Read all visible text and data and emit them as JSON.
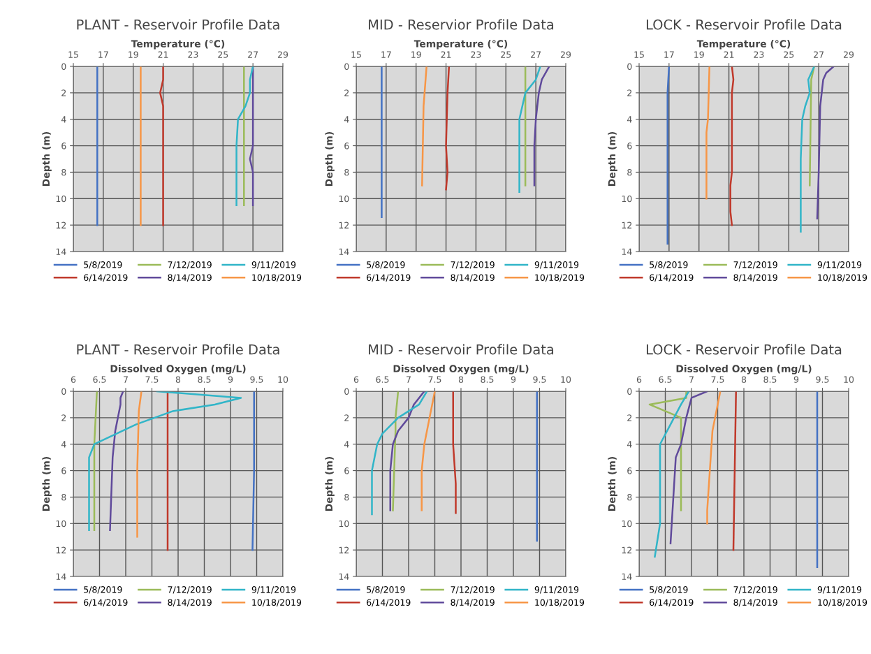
{
  "chart_data": [
    {
      "type": "line",
      "title": "PLANT - Reservoir Profile Data",
      "xlabel": "Temperature (°C)",
      "ylabel": "Depth (m)",
      "xlim": [
        15,
        29
      ],
      "xticks": [
        15,
        17,
        19,
        21,
        23,
        25,
        27,
        29
      ],
      "ylim": [
        14,
        0
      ],
      "yticks": [
        0,
        2,
        4,
        6,
        8,
        10,
        12,
        14
      ],
      "grid": true,
      "legend": "bottom",
      "series": [
        {
          "name": "5/8/2019",
          "color": "#4472c4",
          "x": [
            16.6,
            16.6
          ],
          "values": [
            0,
            12
          ]
        },
        {
          "name": "6/14/2019",
          "color": "#c0392b",
          "x": [
            21.0,
            21.0,
            20.8,
            21.0,
            21.0
          ],
          "values": [
            0,
            1,
            2,
            3,
            12
          ]
        },
        {
          "name": "7/12/2019",
          "color": "#9bbb59",
          "x": [
            26.4,
            26.4
          ],
          "values": [
            0,
            10.5
          ]
        },
        {
          "name": "8/14/2019",
          "color": "#604a9b",
          "x": [
            27.0,
            27.0,
            26.8,
            27.0,
            27.0
          ],
          "values": [
            0,
            6,
            7,
            8,
            10.5
          ]
        },
        {
          "name": "9/11/2019",
          "color": "#31b5c8",
          "x": [
            27.0,
            26.8,
            26.8,
            26.5,
            26.0,
            25.9,
            25.9
          ],
          "values": [
            0,
            1,
            2,
            3,
            4,
            6,
            10.5
          ]
        },
        {
          "name": "10/18/2019",
          "color": "#f79646",
          "x": [
            19.5,
            19.5
          ],
          "values": [
            0,
            12
          ]
        }
      ]
    },
    {
      "type": "line",
      "title": "MID - Reservior Profile Data",
      "xlabel": "Temperature (°C)",
      "ylabel": "Depth (m)",
      "xlim": [
        15,
        29
      ],
      "xticks": [
        15,
        17,
        19,
        21,
        23,
        25,
        27,
        29
      ],
      "ylim": [
        14,
        0
      ],
      "yticks": [
        0,
        2,
        4,
        6,
        8,
        10,
        12,
        14
      ],
      "grid": true,
      "legend": "bottom",
      "series": [
        {
          "name": "5/8/2019",
          "color": "#4472c4",
          "x": [
            16.7,
            16.7
          ],
          "values": [
            0,
            11.4
          ]
        },
        {
          "name": "6/14/2019",
          "color": "#c0392b",
          "x": [
            21.2,
            21.1,
            21.0,
            21.1,
            21.0
          ],
          "values": [
            0,
            2,
            6,
            8,
            9.3
          ]
        },
        {
          "name": "7/12/2019",
          "color": "#9bbb59",
          "x": [
            26.3,
            26.3
          ],
          "values": [
            0,
            9.0
          ]
        },
        {
          "name": "8/14/2019",
          "color": "#604a9b",
          "x": [
            27.9,
            27.4,
            27.2,
            27.0,
            26.9,
            26.9
          ],
          "values": [
            0,
            1,
            2,
            4,
            6,
            9
          ]
        },
        {
          "name": "9/11/2019",
          "color": "#31b5c8",
          "x": [
            27.3,
            27.0,
            26.3,
            26.1,
            25.9,
            25.9
          ],
          "values": [
            0,
            1,
            2,
            3,
            4,
            9.5
          ]
        },
        {
          "name": "10/18/2019",
          "color": "#f79646",
          "x": [
            19.7,
            19.5,
            19.4
          ],
          "values": [
            0,
            3,
            9.0
          ]
        }
      ]
    },
    {
      "type": "line",
      "title": "LOCK - Reservoir Profile Data",
      "xlabel": "Temperature (°C)",
      "ylabel": "Depth (m)",
      "xlim": [
        15,
        29
      ],
      "xticks": [
        15,
        17,
        19,
        21,
        23,
        25,
        27,
        29
      ],
      "ylim": [
        14,
        0
      ],
      "yticks": [
        0,
        2,
        4,
        6,
        8,
        10,
        12,
        14
      ],
      "grid": true,
      "legend": "bottom",
      "series": [
        {
          "name": "5/8/2019",
          "color": "#4472c4",
          "x": [
            17.0,
            16.9,
            16.9
          ],
          "values": [
            0,
            2,
            13.4
          ]
        },
        {
          "name": "6/14/2019",
          "color": "#c0392b",
          "x": [
            21.2,
            21.3,
            21.2,
            21.2,
            21.1,
            21.1,
            21.2
          ],
          "values": [
            0,
            1,
            2,
            8,
            9,
            11,
            12
          ]
        },
        {
          "name": "7/12/2019",
          "color": "#9bbb59",
          "x": [
            26.7,
            26.5,
            26.4
          ],
          "values": [
            0,
            1,
            9
          ]
        },
        {
          "name": "8/14/2019",
          "color": "#604a9b",
          "x": [
            28.0,
            27.5,
            27.3,
            27.1,
            27.0,
            26.9
          ],
          "values": [
            0,
            0.5,
            1,
            3,
            8,
            11.5
          ]
        },
        {
          "name": "9/11/2019",
          "color": "#31b5c8",
          "x": [
            26.7,
            26.3,
            26.4,
            26.1,
            25.9,
            25.8,
            25.8
          ],
          "values": [
            0,
            1,
            2,
            3,
            4,
            7,
            12.5
          ]
        },
        {
          "name": "10/18/2019",
          "color": "#f79646",
          "x": [
            19.7,
            19.6,
            19.5,
            19.5
          ],
          "values": [
            0,
            4,
            5,
            10
          ]
        }
      ]
    },
    {
      "type": "line",
      "title": "PLANT - Reservoir Profile Data",
      "xlabel": "Dissolved Oxygen (mg/L)",
      "ylabel": "Depth (m)",
      "xlim": [
        6,
        10
      ],
      "xticks": [
        6,
        6.5,
        7,
        7.5,
        8,
        8.5,
        9,
        9.5,
        10
      ],
      "ylim": [
        14,
        0
      ],
      "yticks": [
        0,
        2,
        4,
        6,
        8,
        10,
        12,
        14
      ],
      "grid": true,
      "legend": "bottom",
      "series": [
        {
          "name": "5/8/2019",
          "color": "#4472c4",
          "x": [
            9.45,
            9.45,
            9.42
          ],
          "values": [
            0,
            6,
            12
          ]
        },
        {
          "name": "6/14/2019",
          "color": "#c0392b",
          "x": [
            7.8,
            7.8
          ],
          "values": [
            0,
            12
          ]
        },
        {
          "name": "7/12/2019",
          "color": "#9bbb59",
          "x": [
            6.45,
            6.4,
            6.4
          ],
          "values": [
            0,
            4,
            10.5
          ]
        },
        {
          "name": "8/14/2019",
          "color": "#604a9b",
          "x": [
            6.95,
            6.9,
            6.9,
            6.8,
            6.75,
            6.7
          ],
          "values": [
            0,
            0.5,
            1,
            3,
            5,
            10.5
          ]
        },
        {
          "name": "9/11/2019",
          "color": "#31b5c8",
          "x": [
            7.6,
            9.2,
            8.7,
            7.9,
            7.2,
            6.4,
            6.3,
            6.3
          ],
          "values": [
            0,
            0.5,
            1,
            1.5,
            2.5,
            4,
            5,
            10.5
          ]
        },
        {
          "name": "10/18/2019",
          "color": "#f79646",
          "x": [
            7.3,
            7.25,
            7.22,
            7.22
          ],
          "values": [
            0,
            1.5,
            6,
            11
          ]
        }
      ]
    },
    {
      "type": "line",
      "title": "MID - Reservoir Profile Data",
      "xlabel": "Dissolved Oxygen (mg/L)",
      "ylabel": "Depth (m)",
      "xlim": [
        6,
        10
      ],
      "xticks": [
        6,
        6.5,
        7,
        7.5,
        8,
        8.5,
        9,
        9.5,
        10
      ],
      "ylim": [
        14,
        0
      ],
      "yticks": [
        0,
        2,
        4,
        6,
        8,
        10,
        12,
        14
      ],
      "grid": true,
      "legend": "bottom",
      "series": [
        {
          "name": "5/8/2019",
          "color": "#4472c4",
          "x": [
            9.45,
            9.45
          ],
          "values": [
            0,
            11.3
          ]
        },
        {
          "name": "6/14/2019",
          "color": "#c0392b",
          "x": [
            7.85,
            7.85,
            7.9,
            7.9
          ],
          "values": [
            0,
            4,
            7,
            9.2
          ]
        },
        {
          "name": "7/12/2019",
          "color": "#9bbb59",
          "x": [
            6.8,
            6.75,
            6.75,
            6.7
          ],
          "values": [
            0,
            2,
            3,
            9
          ]
        },
        {
          "name": "8/14/2019",
          "color": "#604a9b",
          "x": [
            7.3,
            7.1,
            7.0,
            6.8,
            6.7,
            6.65,
            6.65
          ],
          "values": [
            0,
            1,
            2,
            3,
            4,
            6,
            9
          ]
        },
        {
          "name": "9/11/2019",
          "color": "#31b5c8",
          "x": [
            7.35,
            7.2,
            6.8,
            6.5,
            6.4,
            6.3,
            6.3
          ],
          "values": [
            0,
            1,
            2,
            3.2,
            4,
            6,
            9.3
          ]
        },
        {
          "name": "10/18/2019",
          "color": "#f79646",
          "x": [
            7.5,
            7.4,
            7.3,
            7.25,
            7.25
          ],
          "values": [
            0,
            2,
            4,
            6,
            9
          ]
        }
      ]
    },
    {
      "type": "line",
      "title": "LOCK - Reservoir Profile Data",
      "xlabel": "Dissolved Oxygen (mg/L)",
      "ylabel": "Depth (m)",
      "xlim": [
        6,
        10
      ],
      "xticks": [
        6,
        6.5,
        7,
        7.5,
        8,
        8.5,
        9,
        9.5,
        10
      ],
      "ylim": [
        14,
        0
      ],
      "yticks": [
        0,
        2,
        4,
        6,
        8,
        10,
        12,
        14
      ],
      "grid": true,
      "legend": "bottom",
      "series": [
        {
          "name": "5/8/2019",
          "color": "#4472c4",
          "x": [
            9.4,
            9.4
          ],
          "values": [
            0,
            13.3
          ]
        },
        {
          "name": "6/14/2019",
          "color": "#c0392b",
          "x": [
            7.85,
            7.8
          ],
          "values": [
            0,
            12
          ]
        },
        {
          "name": "7/12/2019",
          "color": "#9bbb59",
          "x": [
            6.9,
            6.9,
            6.2,
            6.8,
            6.8
          ],
          "values": [
            0,
            0.5,
            1,
            2,
            9
          ]
        },
        {
          "name": "8/14/2019",
          "color": "#604a9b",
          "x": [
            7.3,
            7.0,
            6.9,
            6.8,
            6.7,
            6.6
          ],
          "values": [
            0,
            0.5,
            2,
            4,
            5,
            11.5
          ]
        },
        {
          "name": "9/11/2019",
          "color": "#31b5c8",
          "x": [
            6.95,
            6.8,
            6.6,
            6.4,
            6.4,
            6.3
          ],
          "values": [
            0,
            1,
            2.5,
            4,
            10,
            12.5
          ]
        },
        {
          "name": "10/18/2019",
          "color": "#f79646",
          "x": [
            7.55,
            7.5,
            7.4,
            7.3,
            7.3
          ],
          "values": [
            0,
            1,
            3,
            9,
            10
          ]
        }
      ]
    }
  ]
}
